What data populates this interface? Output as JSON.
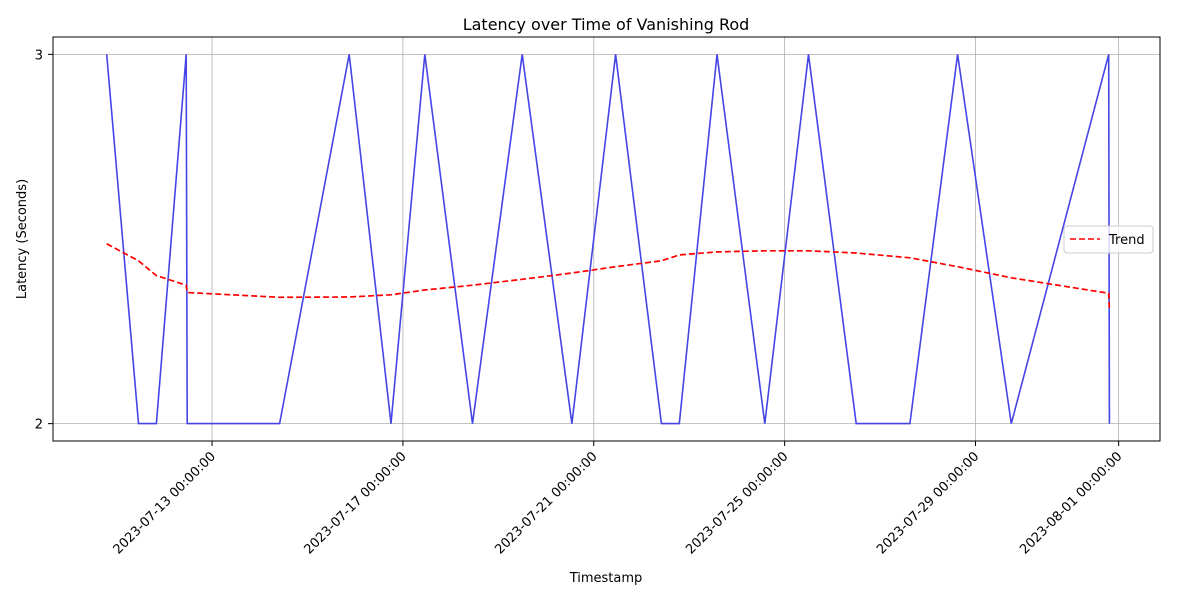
{
  "chart_data": {
    "type": "line",
    "title": "Latency over Time of Vanishing Rod",
    "xlabel": "Timestamp",
    "ylabel": "Latency (Seconds)",
    "ylim": [
      1.953,
      3.047
    ],
    "xlim": [
      "2023-07-09 16:00:00",
      "2023-08-01 20:48:00"
    ],
    "x_ticks": [
      "2023-07-13 00:00:00",
      "2023-07-17 00:00:00",
      "2023-07-21 00:00:00",
      "2023-07-25 00:00:00",
      "2023-07-29 00:00:00",
      "2023-08-01 00:00:00"
    ],
    "y_ticks": [
      "2",
      "3"
    ],
    "grid": true,
    "legend": {
      "placement": "right",
      "entries": [
        "Trend"
      ]
    },
    "series": [
      {
        "name": "",
        "color": "#4545e6",
        "style": "solid",
        "points": [
          [
            "2023-07-10 19:00:00",
            3
          ],
          [
            "2023-07-11 11:00:00",
            2
          ],
          [
            "2023-07-11 20:00:00",
            2
          ],
          [
            "2023-07-12 11:00:00",
            3
          ],
          [
            "2023-07-12 11:30:00",
            2
          ],
          [
            "2023-07-14 10:00:00",
            2
          ],
          [
            "2023-07-15 21:00:00",
            3
          ],
          [
            "2023-07-16 18:00:00",
            2
          ],
          [
            "2023-07-17 11:00:00",
            3
          ],
          [
            "2023-07-18 11:00:00",
            2
          ],
          [
            "2023-07-19 12:00:00",
            3
          ],
          [
            "2023-07-20 13:00:00",
            2
          ],
          [
            "2023-07-21 11:00:00",
            3
          ],
          [
            "2023-07-22 10:00:00",
            2
          ],
          [
            "2023-07-22 19:00:00",
            2
          ],
          [
            "2023-07-23 14:00:00",
            3
          ],
          [
            "2023-07-24 14:00:00",
            2
          ],
          [
            "2023-07-25 12:00:00",
            3
          ],
          [
            "2023-07-26 12:00:00",
            2
          ],
          [
            "2023-07-27 15:00:00",
            2
          ],
          [
            "2023-07-28 15:00:00",
            3
          ],
          [
            "2023-07-29 18:00:00",
            2
          ],
          [
            "2023-07-31 19:00:00",
            3
          ],
          [
            "2023-07-31 19:20:00",
            2
          ]
        ]
      },
      {
        "name": "Trend",
        "color": "#ff0000",
        "style": "dashed",
        "points": [
          [
            "2023-07-10 19:00:00",
            2.487
          ],
          [
            "2023-07-11 11:00:00",
            2.441
          ],
          [
            "2023-07-11 20:00:00",
            2.401
          ],
          [
            "2023-07-12 11:00:00",
            2.375
          ],
          [
            "2023-07-12 11:30:00",
            2.355
          ],
          [
            "2023-07-14 10:00:00",
            2.342
          ],
          [
            "2023-07-15 21:00:00",
            2.343
          ],
          [
            "2023-07-16 18:00:00",
            2.349
          ],
          [
            "2023-07-17 11:00:00",
            2.362
          ],
          [
            "2023-07-18 11:00:00",
            2.375
          ],
          [
            "2023-07-19 12:00:00",
            2.391
          ],
          [
            "2023-07-20 13:00:00",
            2.408
          ],
          [
            "2023-07-21 11:00:00",
            2.425
          ],
          [
            "2023-07-22 10:00:00",
            2.441
          ],
          [
            "2023-07-22 19:00:00",
            2.457
          ],
          [
            "2023-07-23 14:00:00",
            2.465
          ],
          [
            "2023-07-24 14:00:00",
            2.468
          ],
          [
            "2023-07-25 12:00:00",
            2.468
          ],
          [
            "2023-07-26 12:00:00",
            2.462
          ],
          [
            "2023-07-27 15:00:00",
            2.449
          ],
          [
            "2023-07-28 15:00:00",
            2.425
          ],
          [
            "2023-07-29 18:00:00",
            2.395
          ],
          [
            "2023-07-31 19:00:00",
            2.353
          ],
          [
            "2023-07-31 19:20:00",
            2.311
          ]
        ]
      }
    ]
  }
}
